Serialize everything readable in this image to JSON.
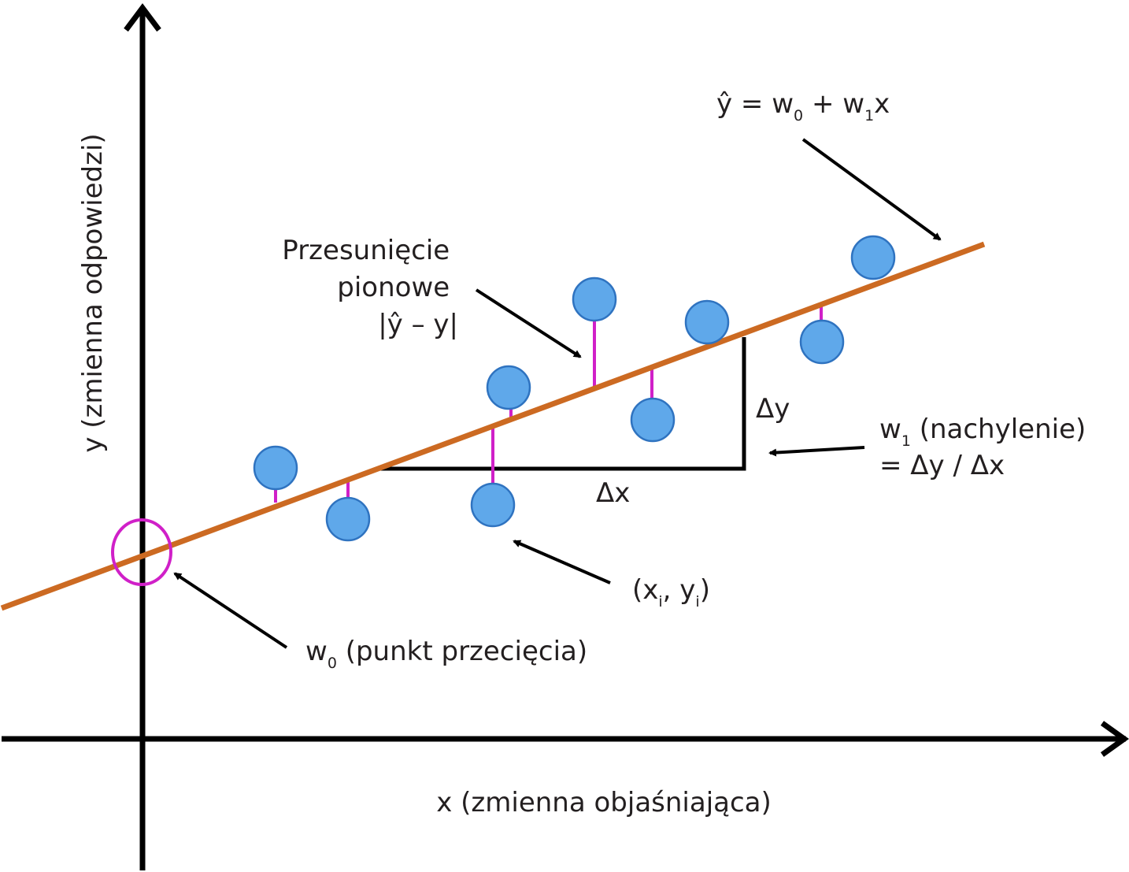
{
  "axes": {
    "x_label": "x (zmienna objaśniająca)",
    "y_label": "y (zmienna odpowiedzi)"
  },
  "equation": {
    "hat": "ŷ = w",
    "sub0": "0",
    "plus": " + w",
    "sub1": "1",
    "tail": "x"
  },
  "residual_label": {
    "line1": "Przesunięcie",
    "line2": "pionowe",
    "line3": "|ŷ – y|"
  },
  "delta_x": "Δx",
  "delta_y": "Δy",
  "slope_label": {
    "w": "w",
    "sub": "1",
    "rest": " (nachylenie)",
    "line2": "= Δy / Δx"
  },
  "point_label": {
    "open": "(x",
    "sub_i1": "i",
    "mid": ", y",
    "sub_i2": "i",
    "close": ")"
  },
  "intercept_label": {
    "w": "w",
    "sub": "0",
    "rest": " (punkt przecięcia)"
  },
  "colors": {
    "regression_line": "#cc6a22",
    "point_fill": "#5fa8ea",
    "point_stroke": "#2f73c0",
    "residual": "#d020c8",
    "intercept_circle": "#d020c8",
    "axis": "#000000"
  }
}
